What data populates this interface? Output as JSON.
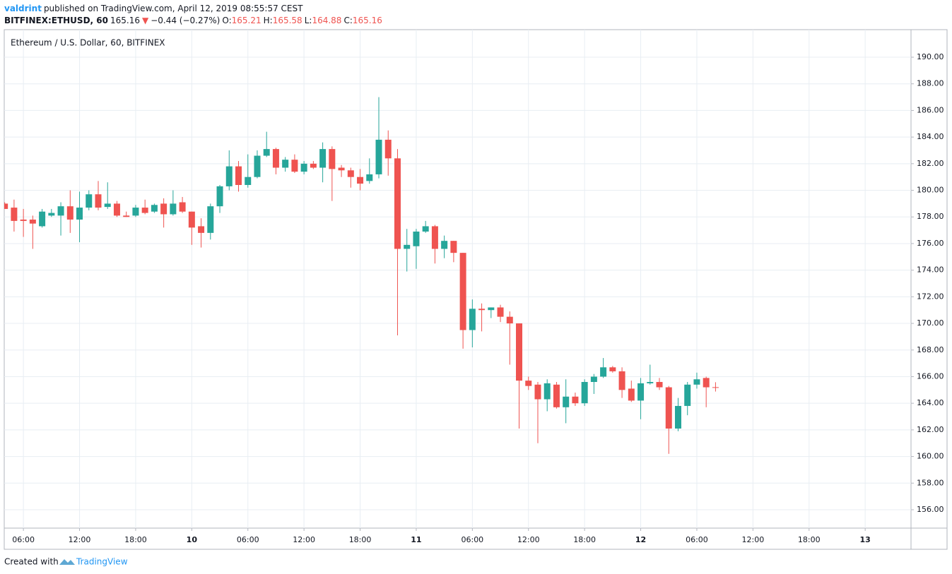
{
  "header": {
    "author": "valdrint",
    "published": "published on TradingView.com, April 12, 2019 08:55:57 CEST",
    "symbol": "BITFINEX:ETHUSD, 60",
    "last": "165.16",
    "arrow": "▼",
    "change": "−0.44 (−0.27%)",
    "o_label": "O:",
    "o": "165.21",
    "h_label": "H:",
    "h": "165.58",
    "l_label": "L:",
    "l": "164.88",
    "c_label": "C:",
    "c": "165.16"
  },
  "footer": {
    "created": "Created with",
    "brand": "TradingView"
  },
  "chart_data": {
    "type": "candlestick",
    "title": "Ethereum / U.S. Dollar, 60, BITFINEX",
    "up_color": "#26a69a",
    "down_color": "#ef5350",
    "grid": true,
    "x": [
      4,
      5,
      6,
      7,
      8,
      9,
      10,
      11,
      12,
      13,
      14,
      15,
      16,
      17,
      18,
      19,
      20,
      21,
      22,
      23,
      24,
      25,
      26,
      27,
      28,
      29,
      30,
      31,
      32,
      33,
      34,
      35,
      36,
      37,
      38,
      39,
      40,
      41,
      42,
      43,
      44,
      45,
      46,
      47,
      48,
      49,
      50,
      51,
      52,
      53,
      54,
      55,
      56,
      57,
      58,
      59,
      60,
      61,
      62,
      63,
      64,
      65,
      66,
      67,
      68,
      69,
      70,
      71,
      72,
      73,
      74,
      75,
      76,
      77,
      78,
      79,
      80
    ],
    "open": [
      179.0,
      178.7,
      177.8,
      177.8,
      177.3,
      178.1,
      178.1,
      178.8,
      177.8,
      178.7,
      179.7,
      178.75,
      179.0,
      178.1,
      178.1,
      178.7,
      178.4,
      179.0,
      178.2,
      179.1,
      178.4,
      177.3,
      176.8,
      178.8,
      180.3,
      181.8,
      180.4,
      181.0,
      182.6,
      183.1,
      181.7,
      182.3,
      181.4,
      182.0,
      181.7,
      183.1,
      181.7,
      181.5,
      181.0,
      180.7,
      181.2,
      183.8,
      182.4,
      175.6,
      175.8,
      176.9,
      177.3,
      175.6,
      176.2,
      175.3,
      169.5,
      171.1,
      171.0,
      171.2,
      170.5,
      170.0,
      165.7,
      165.4,
      164.3,
      165.4,
      163.7,
      164.5,
      164.0,
      165.6,
      166.0,
      166.7,
      166.4,
      165.1,
      164.2,
      165.5,
      165.6,
      165.2,
      162.1,
      163.8,
      165.4,
      165.9,
      165.21
    ],
    "high": [
      179.1,
      179.3,
      178.6,
      178.1,
      178.6,
      178.6,
      179.1,
      180.0,
      179.9,
      180.0,
      180.7,
      180.6,
      179.2,
      178.4,
      178.9,
      179.3,
      179.0,
      179.4,
      180.0,
      179.5,
      178.4,
      177.9,
      179.0,
      180.4,
      183.0,
      182.2,
      182.7,
      183.0,
      184.4,
      183.2,
      182.5,
      182.7,
      182.2,
      182.2,
      183.6,
      183.3,
      181.9,
      181.7,
      181.6,
      182.4,
      187.0,
      184.5,
      183.1,
      177.1,
      177.1,
      177.7,
      177.4,
      176.6,
      176.2,
      175.3,
      171.8,
      171.5,
      171.2,
      171.4,
      170.9,
      170.0,
      166.0,
      165.6,
      165.8,
      165.6,
      165.8,
      164.8,
      165.8,
      166.2,
      167.4,
      166.8,
      166.7,
      165.7,
      165.9,
      166.9,
      165.9,
      165.3,
      164.4,
      165.6,
      166.3,
      166.0,
      165.58
    ],
    "low": [
      178.6,
      176.9,
      176.5,
      175.6,
      177.2,
      178.0,
      176.6,
      176.8,
      176.1,
      178.5,
      178.5,
      178.6,
      178.0,
      178.0,
      178.0,
      178.2,
      178.3,
      177.2,
      178.1,
      178.3,
      175.9,
      175.7,
      176.3,
      178.3,
      180.0,
      179.9,
      180.2,
      180.9,
      182.5,
      181.2,
      181.4,
      181.3,
      181.2,
      181.6,
      180.6,
      179.2,
      181.0,
      180.2,
      180.0,
      180.5,
      180.9,
      181.1,
      169.1,
      173.9,
      174.1,
      176.8,
      174.5,
      174.9,
      174.6,
      168.1,
      168.2,
      169.4,
      170.4,
      170.1,
      166.9,
      162.1,
      165.0,
      161.0,
      163.4,
      163.6,
      162.5,
      163.8,
      163.8,
      164.7,
      165.9,
      166.3,
      164.4,
      164.1,
      162.8,
      165.4,
      165.0,
      160.2,
      161.9,
      163.1,
      165.1,
      163.7,
      164.88
    ],
    "close": [
      178.6,
      177.7,
      177.7,
      177.5,
      178.4,
      178.3,
      178.8,
      177.8,
      178.7,
      179.7,
      178.7,
      179.0,
      178.1,
      178.0,
      178.7,
      178.3,
      178.9,
      178.2,
      179.0,
      178.4,
      177.2,
      176.8,
      178.8,
      180.3,
      181.8,
      180.4,
      181.0,
      182.6,
      183.1,
      181.7,
      182.3,
      181.4,
      182.0,
      181.7,
      183.1,
      181.6,
      181.5,
      181.0,
      180.5,
      181.2,
      183.8,
      182.4,
      175.6,
      175.9,
      176.9,
      177.3,
      175.6,
      176.2,
      175.3,
      169.5,
      171.1,
      171.0,
      171.2,
      170.5,
      170.0,
      165.7,
      165.3,
      164.3,
      165.5,
      163.7,
      164.5,
      164.0,
      165.6,
      166.0,
      166.7,
      166.4,
      165.0,
      164.2,
      165.5,
      165.6,
      165.2,
      162.1,
      163.8,
      165.4,
      165.8,
      165.2,
      165.16
    ],
    "xlim": [
      3.95,
      100.9
    ],
    "xticks": [
      {
        "value": 6,
        "label": "06:00"
      },
      {
        "value": 12,
        "label": "12:00"
      },
      {
        "value": 18,
        "label": "18:00"
      },
      {
        "value": 24,
        "label": "10"
      },
      {
        "value": 30,
        "label": "06:00"
      },
      {
        "value": 36,
        "label": "12:00"
      },
      {
        "value": 42,
        "label": "18:00"
      },
      {
        "value": 48,
        "label": "11"
      },
      {
        "value": 54,
        "label": "06:00"
      },
      {
        "value": 60,
        "label": "12:00"
      },
      {
        "value": 66,
        "label": "18:00"
      },
      {
        "value": 72,
        "label": "12"
      },
      {
        "value": 78,
        "label": "06:00"
      },
      {
        "value": 84,
        "label": "12:00"
      },
      {
        "value": 90,
        "label": "18:00"
      },
      {
        "value": 96,
        "label": "13"
      }
    ],
    "ylim": [
      154.62,
      192.07
    ],
    "yticks": [
      {
        "value": 156,
        "label": "156.00"
      },
      {
        "value": 158,
        "label": "158.00"
      },
      {
        "value": 160,
        "label": "160.00"
      },
      {
        "value": 162,
        "label": "162.00"
      },
      {
        "value": 164,
        "label": "164.00"
      },
      {
        "value": 166,
        "label": "166.00"
      },
      {
        "value": 168,
        "label": "168.00"
      },
      {
        "value": 170,
        "label": "170.00"
      },
      {
        "value": 172,
        "label": "172.00"
      },
      {
        "value": 174,
        "label": "174.00"
      },
      {
        "value": 176,
        "label": "176.00"
      },
      {
        "value": 178,
        "label": "178.00"
      },
      {
        "value": 180,
        "label": "180.00"
      },
      {
        "value": 182,
        "label": "182.00"
      },
      {
        "value": 184,
        "label": "184.00"
      },
      {
        "value": 186,
        "label": "186.00"
      },
      {
        "value": 188,
        "label": "188.00"
      },
      {
        "value": 190,
        "label": "190.00"
      }
    ]
  }
}
